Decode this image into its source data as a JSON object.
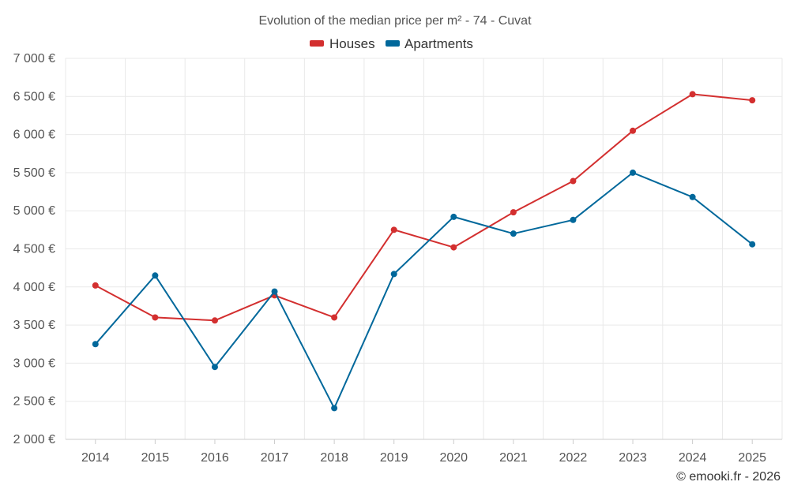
{
  "chart_data": {
    "type": "line",
    "title": "Evolution of the median price per m² - 74 - Cuvat",
    "categories": [
      "2014",
      "2015",
      "2016",
      "2017",
      "2018",
      "2019",
      "2020",
      "2021",
      "2022",
      "2023",
      "2024",
      "2025"
    ],
    "series": [
      {
        "name": "Houses",
        "color": "#d32f2f",
        "values": [
          4020,
          3600,
          3560,
          3890,
          3600,
          4750,
          4520,
          4980,
          5390,
          6050,
          6530,
          6450
        ]
      },
      {
        "name": "Apartments",
        "color": "#01689b",
        "values": [
          3250,
          4150,
          2950,
          3940,
          2410,
          4170,
          4920,
          4700,
          4880,
          5500,
          5180,
          4560
        ]
      }
    ],
    "ylim": [
      2000,
      7000
    ],
    "yticks": [
      2000,
      2500,
      3000,
      3500,
      4000,
      4500,
      5000,
      5500,
      6000,
      6500,
      7000
    ],
    "ytick_labels": [
      "2 000 €",
      "2 500 €",
      "3 000 €",
      "3 500 €",
      "4 000 €",
      "4 500 €",
      "5 000 €",
      "5 500 €",
      "6 000 €",
      "6 500 €",
      "7 000 €"
    ],
    "xlabel": "",
    "ylabel": "",
    "grid": true,
    "legend_position": "top-center"
  },
  "credit": "© emooki.fr - 2026"
}
